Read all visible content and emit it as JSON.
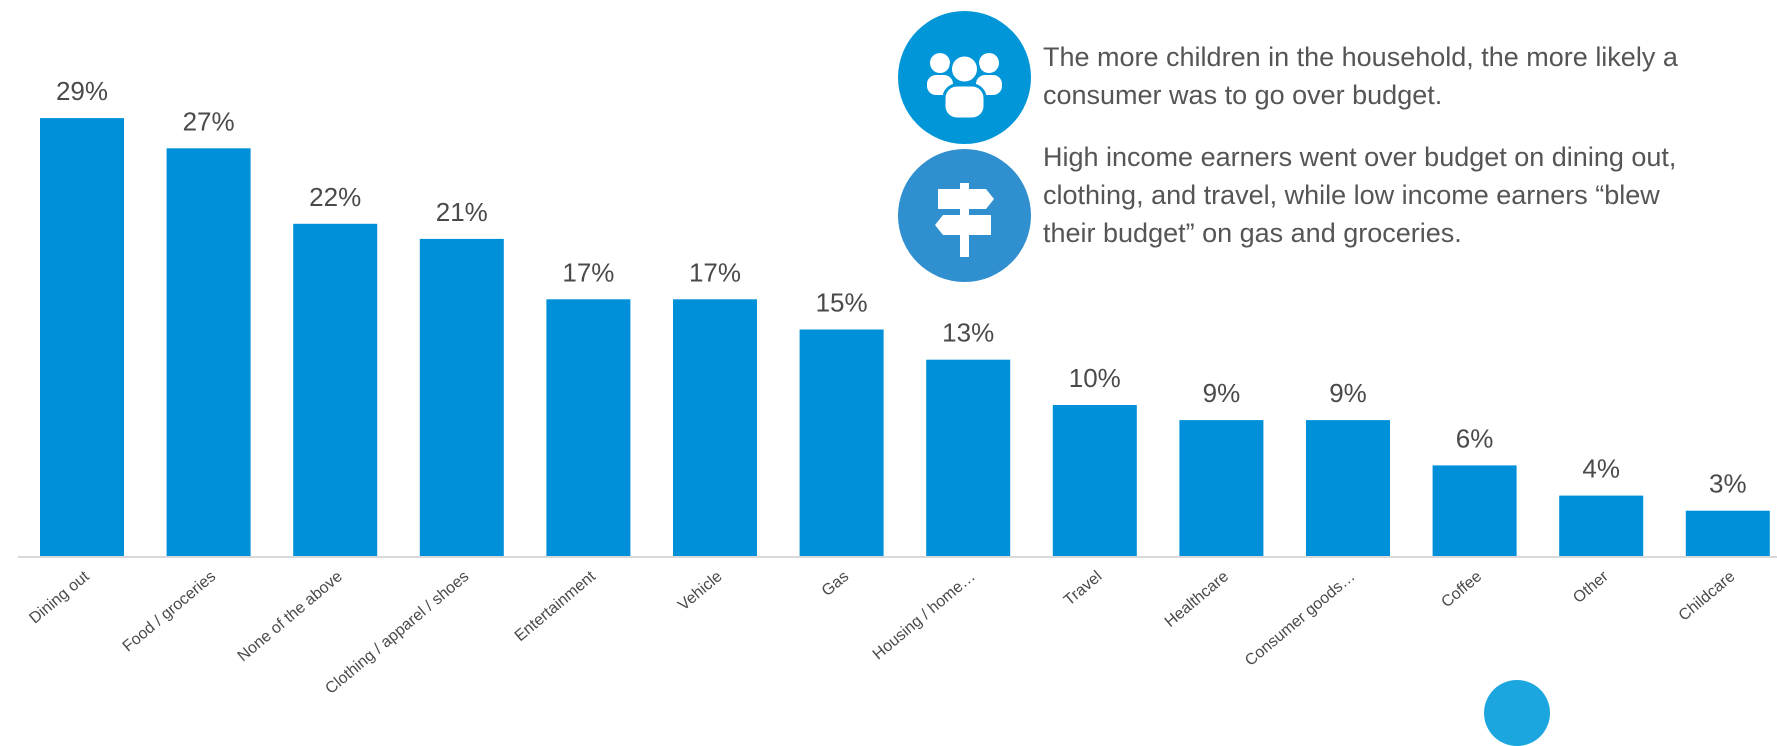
{
  "chart_data": {
    "type": "bar",
    "categories": [
      "Dining out",
      "Food / groceries",
      "None of the above",
      "Clothing / apparel / shoes",
      "Entertainment",
      "Vehicle",
      "Gas",
      "Housing / home…",
      "Travel",
      "Healthcare",
      "Consumer goods…",
      "Coffee",
      "Other",
      "Childcare"
    ],
    "values": [
      29,
      27,
      22,
      21,
      17,
      17,
      15,
      13,
      10,
      9,
      9,
      6,
      4,
      3
    ],
    "value_labels": [
      "29%",
      "27%",
      "22%",
      "21%",
      "17%",
      "17%",
      "15%",
      "13%",
      "10%",
      "9%",
      "9%",
      "6%",
      "4%",
      "3%"
    ],
    "ylim": [
      0,
      30
    ],
    "grid": false,
    "colors": {
      "bar": "#0090d9",
      "baseline": "#d9d9d9",
      "text": "#4a4a4a"
    }
  },
  "notes": [
    {
      "icon": "people-group-icon",
      "text": "The more children in the household, the more likely a consumer was to go over budget."
    },
    {
      "icon": "signpost-icon",
      "text": "High income earners went over budget on dining out, clothing, and travel, while low income earners “blew their budget” on gas and groceries."
    }
  ],
  "colors": {
    "icon_1": "#0096d8",
    "icon_2": "#2f8fcf",
    "note_text": "#555555"
  }
}
